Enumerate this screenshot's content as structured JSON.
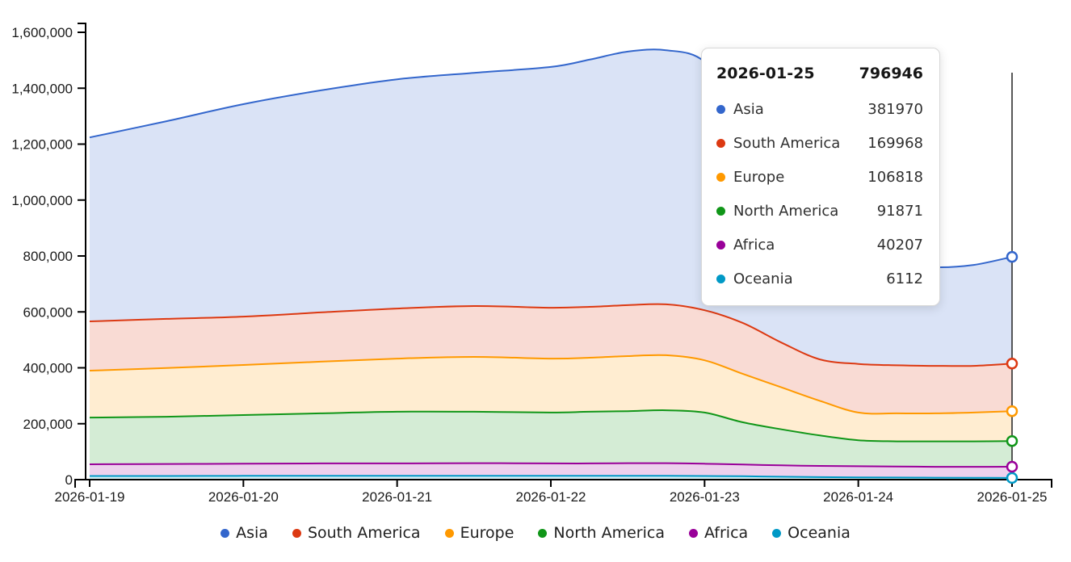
{
  "chart_data": {
    "type": "area",
    "stacked": true,
    "title": "",
    "grid": false,
    "legend_position": "bottom",
    "area_fill_opacity": 0.18,
    "ylim": [
      0,
      1600000
    ],
    "x_tick_labels": [
      "2026-01-19",
      "2026-01-20",
      "2026-01-21",
      "2026-01-22",
      "2026-01-23",
      "2026-01-24",
      "2026-01-25"
    ],
    "y_ticks": {
      "values": [
        0,
        200000,
        400000,
        600000,
        800000,
        1000000,
        1200000,
        1400000,
        1600000
      ],
      "labels": [
        "0",
        "200,000",
        "400,000",
        "600,000",
        "800,000",
        "1,000,000",
        "1,200,000",
        "1,400,000",
        "1,600,000"
      ]
    },
    "x_days": [
      0,
      0.5,
      1,
      1.5,
      2,
      2.5,
      3,
      3.25,
      3.5,
      3.75,
      4,
      4.25,
      4.5,
      4.75,
      5,
      5.25,
      5.5,
      5.75,
      6
    ],
    "stack_order_bottom_to_top": [
      "Oceania",
      "Africa",
      "North America",
      "Europe",
      "South America",
      "Asia"
    ],
    "series": [
      {
        "name": "Asia",
        "color": "#3366cc",
        "values": [
          658000,
          707000,
          760000,
          794000,
          820000,
          834000,
          861000,
          884000,
          907000,
          909000,
          889000,
          750000,
          600000,
          490000,
          406000,
          366000,
          353000,
          361000,
          381970
        ]
      },
      {
        "name": "South America",
        "color": "#dc3912",
        "values": [
          176000,
          176000,
          173000,
          176000,
          179000,
          182000,
          182000,
          182000,
          182000,
          182000,
          179000,
          182000,
          160000,
          148000,
          174000,
          172000,
          170000,
          167000,
          169968
        ]
      },
      {
        "name": "Europe",
        "color": "#ff9900",
        "values": [
          168000,
          174000,
          179000,
          185000,
          190000,
          196000,
          193000,
          193000,
          197000,
          197000,
          187000,
          173000,
          150000,
          124000,
          99000,
          100000,
          100000,
          103000,
          106818
        ]
      },
      {
        "name": "North America",
        "color": "#109618",
        "values": [
          167000,
          169000,
          174000,
          179000,
          185000,
          184000,
          182000,
          185000,
          186000,
          189000,
          183000,
          151000,
          129000,
          109000,
          93000,
          90000,
          91000,
          91000,
          91871
        ]
      },
      {
        "name": "Africa",
        "color": "#990099",
        "values": [
          42000,
          43000,
          43500,
          44000,
          44000,
          45000,
          44000,
          44000,
          45000,
          45000,
          44000,
          42000,
          40500,
          40000,
          40000,
          39500,
          39000,
          39500,
          40207
        ]
      },
      {
        "name": "Oceania",
        "color": "#0099c6",
        "values": [
          13000,
          13000,
          13500,
          14000,
          14000,
          14000,
          14000,
          14000,
          14000,
          14000,
          13000,
          12000,
          10500,
          9000,
          8000,
          7500,
          7000,
          6500,
          6112
        ]
      }
    ]
  },
  "crosshair": {
    "x_day": 6,
    "x_label": "2026-01-25"
  },
  "tooltip": {
    "date": "2026-01-25",
    "total": "796946",
    "rows": [
      {
        "name": "Asia",
        "value": "381970",
        "color": "#3366cc"
      },
      {
        "name": "South America",
        "value": "169968",
        "color": "#dc3912"
      },
      {
        "name": "Europe",
        "value": "106818",
        "color": "#ff9900"
      },
      {
        "name": "North America",
        "value": "91871",
        "color": "#109618"
      },
      {
        "name": "Africa",
        "value": "40207",
        "color": "#990099"
      },
      {
        "name": "Oceania",
        "value": "6112",
        "color": "#0099c6"
      }
    ]
  },
  "legend": {
    "items": [
      {
        "label": "Asia",
        "color": "#3366cc"
      },
      {
        "label": "South America",
        "color": "#dc3912"
      },
      {
        "label": "Europe",
        "color": "#ff9900"
      },
      {
        "label": "North America",
        "color": "#109618"
      },
      {
        "label": "Africa",
        "color": "#990099"
      },
      {
        "label": "Oceania",
        "color": "#0099c6"
      }
    ]
  }
}
